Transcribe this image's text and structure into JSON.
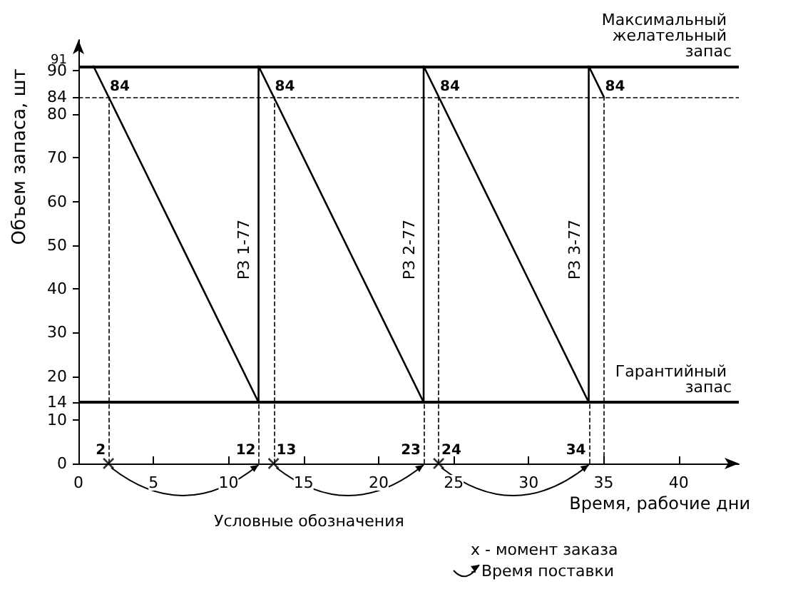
{
  "chart_data": {
    "type": "line",
    "xlabel": "Время, рабочие дни",
    "ylabel": "Объем запаса, шт",
    "series": [
      {
        "color": "#000000",
        "x": [
          1,
          12,
          12,
          23,
          23,
          34,
          34,
          35
        ],
        "values": [
          91,
          14,
          91,
          14,
          91,
          14,
          91,
          84
        ],
        "marker": "none",
        "line_style": "solid"
      },
      {
        "type": "scatter",
        "color": "#000000",
        "x": [
          2,
          13,
          24
        ],
        "values": [
          0,
          0,
          0
        ],
        "marker": "cross"
      }
    ],
    "xlim": [
      0,
      44
    ],
    "xticks": [
      0,
      5,
      10,
      15,
      20,
      25,
      30,
      35,
      40
    ],
    "ylim": [
      0,
      97
    ],
    "yticks": [
      0,
      10,
      14,
      20,
      30,
      40,
      50,
      60,
      70,
      80,
      84,
      90,
      91
    ],
    "grid": false,
    "ref_lines": [
      {
        "axis": "y",
        "value": 91,
        "label": "Максимальный желательный запас",
        "color": "#000000",
        "line_style": "solid"
      },
      {
        "axis": "y",
        "value": 14,
        "label": "Гарантийный запас",
        "color": "#000000",
        "line_style": "solid"
      },
      {
        "axis": "y",
        "value": 84,
        "label": null,
        "color": "#000000",
        "line_style": "dashed"
      },
      {
        "axis": "x",
        "value": 2,
        "label": null,
        "color": "#000000",
        "line_style": "dashed"
      },
      {
        "axis": "x",
        "value": 12,
        "label": null,
        "color": "#000000",
        "line_style": "dashed"
      },
      {
        "axis": "x",
        "value": 13,
        "label": null,
        "color": "#000000",
        "line_style": "dashed"
      },
      {
        "axis": "x",
        "value": 23,
        "label": null,
        "color": "#000000",
        "line_style": "dashed"
      },
      {
        "axis": "x",
        "value": 24,
        "label": null,
        "color": "#000000",
        "line_style": "dashed"
      },
      {
        "axis": "x",
        "value": 34,
        "label": null,
        "color": "#000000",
        "line_style": "dashed"
      },
      {
        "axis": "x",
        "value": 35,
        "label": null,
        "color": "#000000",
        "line_style": "dashed"
      }
    ],
    "annotations": [
      "Условные обозначения",
      "x - момент заказа",
      "- Время поставки",
      {
        "text": "2",
        "x": 2,
        "y": 0
      },
      {
        "text": "12",
        "x": 12,
        "y": 0
      },
      {
        "text": "13",
        "x": 13,
        "y": 0
      },
      {
        "text": "23",
        "x": 23,
        "y": 0
      },
      {
        "text": "24",
        "x": 24,
        "y": 0
      },
      {
        "text": "34",
        "x": 34,
        "y": 0
      },
      {
        "text": "84",
        "x": 2,
        "y": 84
      },
      {
        "text": "84",
        "x": 13,
        "y": 84
      },
      {
        "text": "84",
        "x": 24,
        "y": 84
      },
      {
        "text": "84",
        "x": 35,
        "y": 84
      },
      "РЗ 1-77",
      "РЗ 2-77",
      "РЗ 3-77"
    ]
  }
}
